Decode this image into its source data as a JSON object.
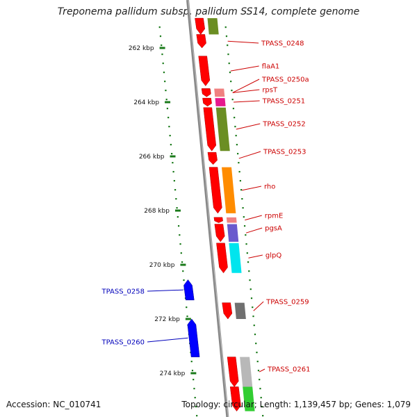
{
  "title": "Treponema pallidum subsp. pallidum SS14, complete genome",
  "accession_label": "Accession: NC_010741",
  "topology_label": "Topology: circular; Length: 1,139,457 bp; Genes: 1,079",
  "colors": {
    "plus_strand": "#ff0000",
    "minus_strand": "#0000ff",
    "backbone": "#888888",
    "tick": "#1a7a1a",
    "label_plus": "#cc0000",
    "label_minus": "#0000bb"
  },
  "scale_ticks": [
    {
      "kbp": 262,
      "label": "262 kbp"
    },
    {
      "kbp": 264,
      "label": "264 kbp"
    },
    {
      "kbp": 266,
      "label": "266 kbp"
    },
    {
      "kbp": 268,
      "label": "268 kbp"
    },
    {
      "kbp": 270,
      "label": "270 kbp"
    },
    {
      "kbp": 272,
      "label": "272 kbp"
    },
    {
      "kbp": 274,
      "label": "274 kbp"
    }
  ],
  "genes": [
    {
      "name": "",
      "strand": "+",
      "start": 260.9,
      "end": 261.5,
      "cog_color": "#6b8e23"
    },
    {
      "name": "TPASS_0248",
      "strand": "+",
      "start": 261.5,
      "end": 262.0,
      "cog_color": ""
    },
    {
      "name": "flaA1",
      "strand": "+",
      "start": 262.3,
      "end": 263.4,
      "cog_color": ""
    },
    {
      "name": "TPASS_0250a",
      "strand": "+",
      "start": 263.5,
      "end": 263.8,
      "cog_color": ""
    },
    {
      "name": "rpsT",
      "strand": "+",
      "start": 263.5,
      "end": 263.8,
      "cog_color": "#f08080"
    },
    {
      "name": "TPASS_0251",
      "strand": "+",
      "start": 263.85,
      "end": 264.15,
      "cog_color": "#e6198c"
    },
    {
      "name": "TPASS_0252",
      "strand": "+",
      "start": 264.2,
      "end": 265.8,
      "cog_color": "#6b8e23"
    },
    {
      "name": "TPASS_0253",
      "strand": "+",
      "start": 265.85,
      "end": 266.3,
      "cog_color": ""
    },
    {
      "name": "rho",
      "strand": "+",
      "start": 266.4,
      "end": 268.1,
      "cog_color": "#ff8c00"
    },
    {
      "name": "rpmE",
      "strand": "+",
      "start": 268.25,
      "end": 268.45,
      "cog_color": "#f08080"
    },
    {
      "name": "pgsA",
      "strand": "+",
      "start": 268.5,
      "end": 269.15,
      "cog_color": "#6a5acd"
    },
    {
      "name": "glpQ",
      "strand": "+",
      "start": 269.2,
      "end": 270.3,
      "cog_color": "#00e5ee"
    },
    {
      "name": "TPASS_0258",
      "strand": "-",
      "start": 270.55,
      "end": 271.3,
      "cog_color": ""
    },
    {
      "name": "TPASS_0259",
      "strand": "+",
      "start": 271.4,
      "end": 272.0,
      "cog_color": "#707070"
    },
    {
      "name": "TPASS_0260",
      "strand": "-",
      "start": 272.0,
      "end": 273.4,
      "cog_color": ""
    },
    {
      "name": "TPASS_0261",
      "strand": "+",
      "start": 273.4,
      "end": 274.5,
      "cog_color": "#b8b8b8"
    },
    {
      "name": "",
      "strand": "+",
      "start": 274.5,
      "end": 275.4,
      "cog_color": "#32cd32"
    }
  ]
}
